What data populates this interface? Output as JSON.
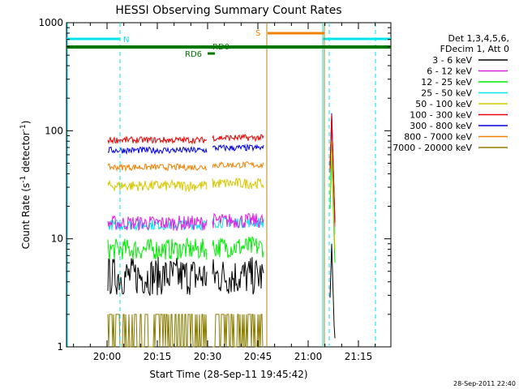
{
  "chart_data": {
    "type": "line",
    "title": "HESSI Observing Summary Count Rates",
    "xlabel": "Start Time (28-Sep-11 19:45:42)",
    "ylabel_main": "Count Rate (s",
    "ylabel_sup1": "-1",
    "ylabel_mid": " detector",
    "ylabel_sup2": "-1",
    "ylabel_end": ")",
    "ylabel": "Count Rate (s-1 detector-1)",
    "yscale": "log",
    "ylim": [
      1,
      1000
    ],
    "x_tick_labels": [
      "20:00",
      "20:15",
      "20:30",
      "20:45",
      "21:00",
      "21:15"
    ],
    "y_tick_labels": [
      "1",
      "10",
      "100",
      "1000"
    ],
    "legend_header": [
      "Det 1,3,4,5,6,",
      "FDecim 1, Att 0"
    ],
    "series": [
      {
        "name": "3 - 6 keV",
        "color": "#000000",
        "level": 4.5,
        "noise": 0.18
      },
      {
        "name": "6 - 12 keV",
        "color": "#e020e0",
        "level": 14,
        "noise": 0.07
      },
      {
        "name": "12 - 25 keV",
        "color": "#00ee00",
        "level": 8,
        "noise": 0.1
      },
      {
        "name": "25 - 50 keV",
        "color": "#00e5ee",
        "level": 13.5,
        "noise": 0.05
      },
      {
        "name": "50 - 100 keV",
        "color": "#d8c800",
        "level": 31,
        "noise": 0.05
      },
      {
        "name": "100 - 300 keV",
        "color": "#ee0000",
        "level": 82,
        "noise": 0.03
      },
      {
        "name": "300 - 800 keV",
        "color": "#0000dd",
        "level": 66,
        "noise": 0.03
      },
      {
        "name": "800 - 7000 keV",
        "color": "#f08000",
        "level": 46,
        "noise": 0.03
      },
      {
        "name": "7000 - 20000 keV",
        "color": "#8b7d00",
        "level": 1.4,
        "noise": 0.2
      }
    ],
    "annotations": {
      "night": "N",
      "saa": "S",
      "rd0": "RD0",
      "rd6": "RD6"
    },
    "timestamp": "28-Sep-2011 22:40"
  }
}
